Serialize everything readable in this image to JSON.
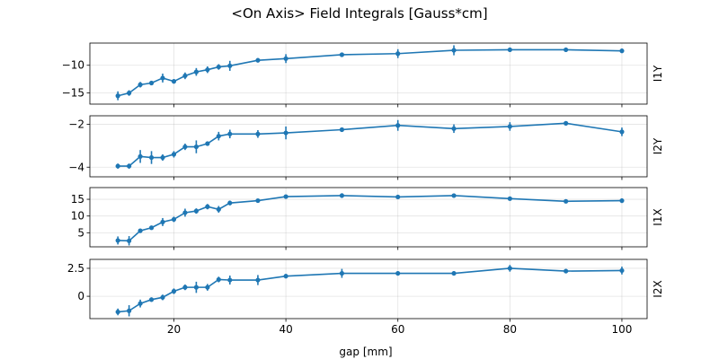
{
  "chart_data": [
    {
      "type": "line",
      "suptitle": "<On Axis> Field Integrals [Gauss*cm]",
      "ylabel": "I1Y",
      "xlabel": "",
      "xlim": [
        5,
        104.5
      ],
      "ylim": [
        -17,
        -6
      ],
      "yticks": [
        -15,
        -10
      ],
      "xticks": [
        20,
        40,
        60,
        80,
        100
      ],
      "grid": true,
      "series": [
        {
          "x": [
            10,
            12,
            14,
            16,
            18,
            20,
            22,
            24,
            26,
            28,
            30,
            35,
            40,
            50,
            60,
            70,
            80,
            90,
            100
          ],
          "y": [
            -15.5,
            -15.0,
            -13.5,
            -13.2,
            -12.3,
            -12.9,
            -11.9,
            -11.2,
            -10.8,
            -10.3,
            -10.1,
            -9.1,
            -8.8,
            -8.1,
            -7.9,
            -7.3,
            -7.2,
            -7.2,
            -7.4
          ],
          "yerr": [
            0.8,
            0.5,
            0.5,
            0.4,
            0.8,
            0.4,
            0.6,
            0.7,
            0.6,
            0.5,
            0.9,
            0.4,
            0.8,
            0.4,
            0.8,
            0.9,
            0.4,
            0.4,
            0.4
          ],
          "color": "#1f77b4"
        }
      ]
    },
    {
      "type": "line",
      "ylabel": "I2Y",
      "xlabel": "",
      "xlim": [
        5,
        104.5
      ],
      "ylim": [
        -4.45,
        -1.6
      ],
      "yticks": [
        -4,
        -2
      ],
      "xticks": [
        20,
        40,
        60,
        80,
        100
      ],
      "grid": true,
      "series": [
        {
          "x": [
            10,
            12,
            14,
            16,
            18,
            20,
            22,
            24,
            26,
            28,
            30,
            35,
            40,
            50,
            60,
            70,
            80,
            90,
            100
          ],
          "y": [
            -3.95,
            -3.95,
            -3.5,
            -3.55,
            -3.55,
            -3.4,
            -3.05,
            -3.05,
            -2.9,
            -2.55,
            -2.45,
            -2.45,
            -2.4,
            -2.25,
            -2.05,
            -2.2,
            -2.1,
            -1.95,
            -2.35
          ],
          "yerr": [
            0.12,
            0.12,
            0.3,
            0.3,
            0.15,
            0.15,
            0.15,
            0.3,
            0.1,
            0.2,
            0.2,
            0.18,
            0.3,
            0.1,
            0.25,
            0.2,
            0.2,
            0.08,
            0.2
          ],
          "color": "#1f77b4"
        }
      ]
    },
    {
      "type": "line",
      "ylabel": "I1X",
      "xlabel": "",
      "xlim": [
        5,
        104.5
      ],
      "ylim": [
        0.8,
        18.5
      ],
      "yticks": [
        5,
        10,
        15
      ],
      "xticks": [
        20,
        40,
        60,
        80,
        100
      ],
      "grid": true,
      "series": [
        {
          "x": [
            10,
            12,
            14,
            16,
            18,
            20,
            22,
            24,
            26,
            28,
            30,
            35,
            40,
            50,
            60,
            70,
            80,
            90,
            100
          ],
          "y": [
            2.7,
            2.6,
            5.6,
            6.5,
            8.2,
            9.0,
            11.0,
            11.5,
            12.8,
            12.0,
            13.9,
            14.6,
            15.8,
            16.1,
            15.7,
            16.1,
            15.2,
            14.4,
            14.6
          ],
          "yerr": [
            1.2,
            1.4,
            0.5,
            0.6,
            1.2,
            0.8,
            1.2,
            0.8,
            0.8,
            1.0,
            0.7,
            0.5,
            0.5,
            0.7,
            0.5,
            0.5,
            0.5,
            0.6,
            0.7
          ],
          "color": "#1f77b4"
        }
      ]
    },
    {
      "type": "line",
      "ylabel": "I2X",
      "xlabel": "gap [mm]",
      "xlim": [
        5,
        104.5
      ],
      "ylim": [
        -2.0,
        3.3
      ],
      "yticks": [
        0.0,
        2.5
      ],
      "xticks": [
        20,
        40,
        60,
        80,
        100
      ],
      "grid": true,
      "series": [
        {
          "x": [
            10,
            12,
            14,
            16,
            18,
            20,
            22,
            24,
            26,
            28,
            30,
            35,
            40,
            50,
            60,
            70,
            80,
            90,
            100
          ],
          "y": [
            -1.4,
            -1.3,
            -0.65,
            -0.3,
            -0.1,
            0.45,
            0.8,
            0.8,
            0.8,
            1.5,
            1.45,
            1.45,
            1.8,
            2.05,
            2.05,
            2.05,
            2.5,
            2.25,
            2.3
          ],
          "yerr": [
            0.3,
            0.5,
            0.35,
            0.2,
            0.25,
            0.25,
            0.25,
            0.5,
            0.3,
            0.25,
            0.4,
            0.45,
            0.2,
            0.4,
            0.2,
            0.2,
            0.3,
            0.2,
            0.35
          ],
          "color": "#1f77b4"
        }
      ]
    }
  ]
}
